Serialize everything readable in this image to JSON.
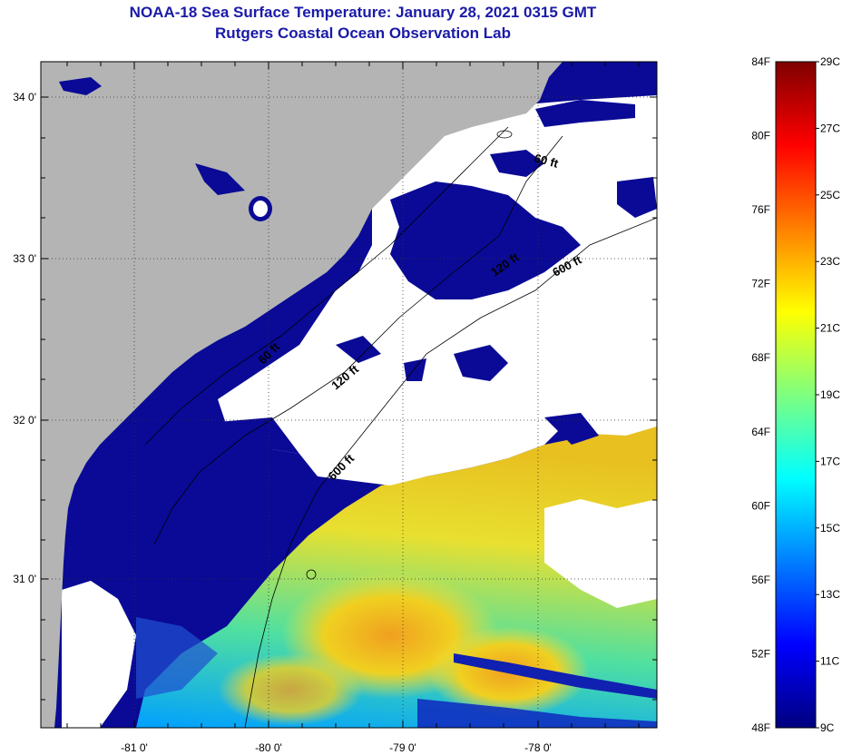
{
  "title": {
    "line1": "NOAA-18 Sea Surface Temperature:  January 28, 2021 0315 GMT",
    "line2": "Rutgers Coastal Ocean Observation Lab"
  },
  "map": {
    "x_ticks": [
      "-81 0'",
      "-80 0'",
      "-79 0'",
      "-78 0'"
    ],
    "y_ticks": [
      "34 0'",
      "33 0'",
      "32 0'",
      "31 0'"
    ],
    "contour_labels": [
      "60 ft",
      "120 ft",
      "600 ft",
      "60 ft",
      "120 ft",
      "600 ft"
    ],
    "colors": {
      "land": "#b4b4b4",
      "cloud": "#ffffff",
      "cold_water": "#0a0a96",
      "frame": "#000000"
    }
  },
  "colorbar": {
    "f_labels": [
      "84F",
      "80F",
      "76F",
      "72F",
      "68F",
      "64F",
      "60F",
      "56F",
      "52F",
      "48F"
    ],
    "c_labels": [
      "29C",
      "27C",
      "25C",
      "23C",
      "21C",
      "19C",
      "17C",
      "15C",
      "13C",
      "11C",
      "9C"
    ],
    "f_range": [
      48,
      84
    ],
    "c_range": [
      9,
      29
    ],
    "colormap": [
      "#00007f",
      "#0000ff",
      "#007fff",
      "#00ffff",
      "#7fff7f",
      "#ffff00",
      "#ff7f00",
      "#ff0000",
      "#7f0000"
    ]
  }
}
